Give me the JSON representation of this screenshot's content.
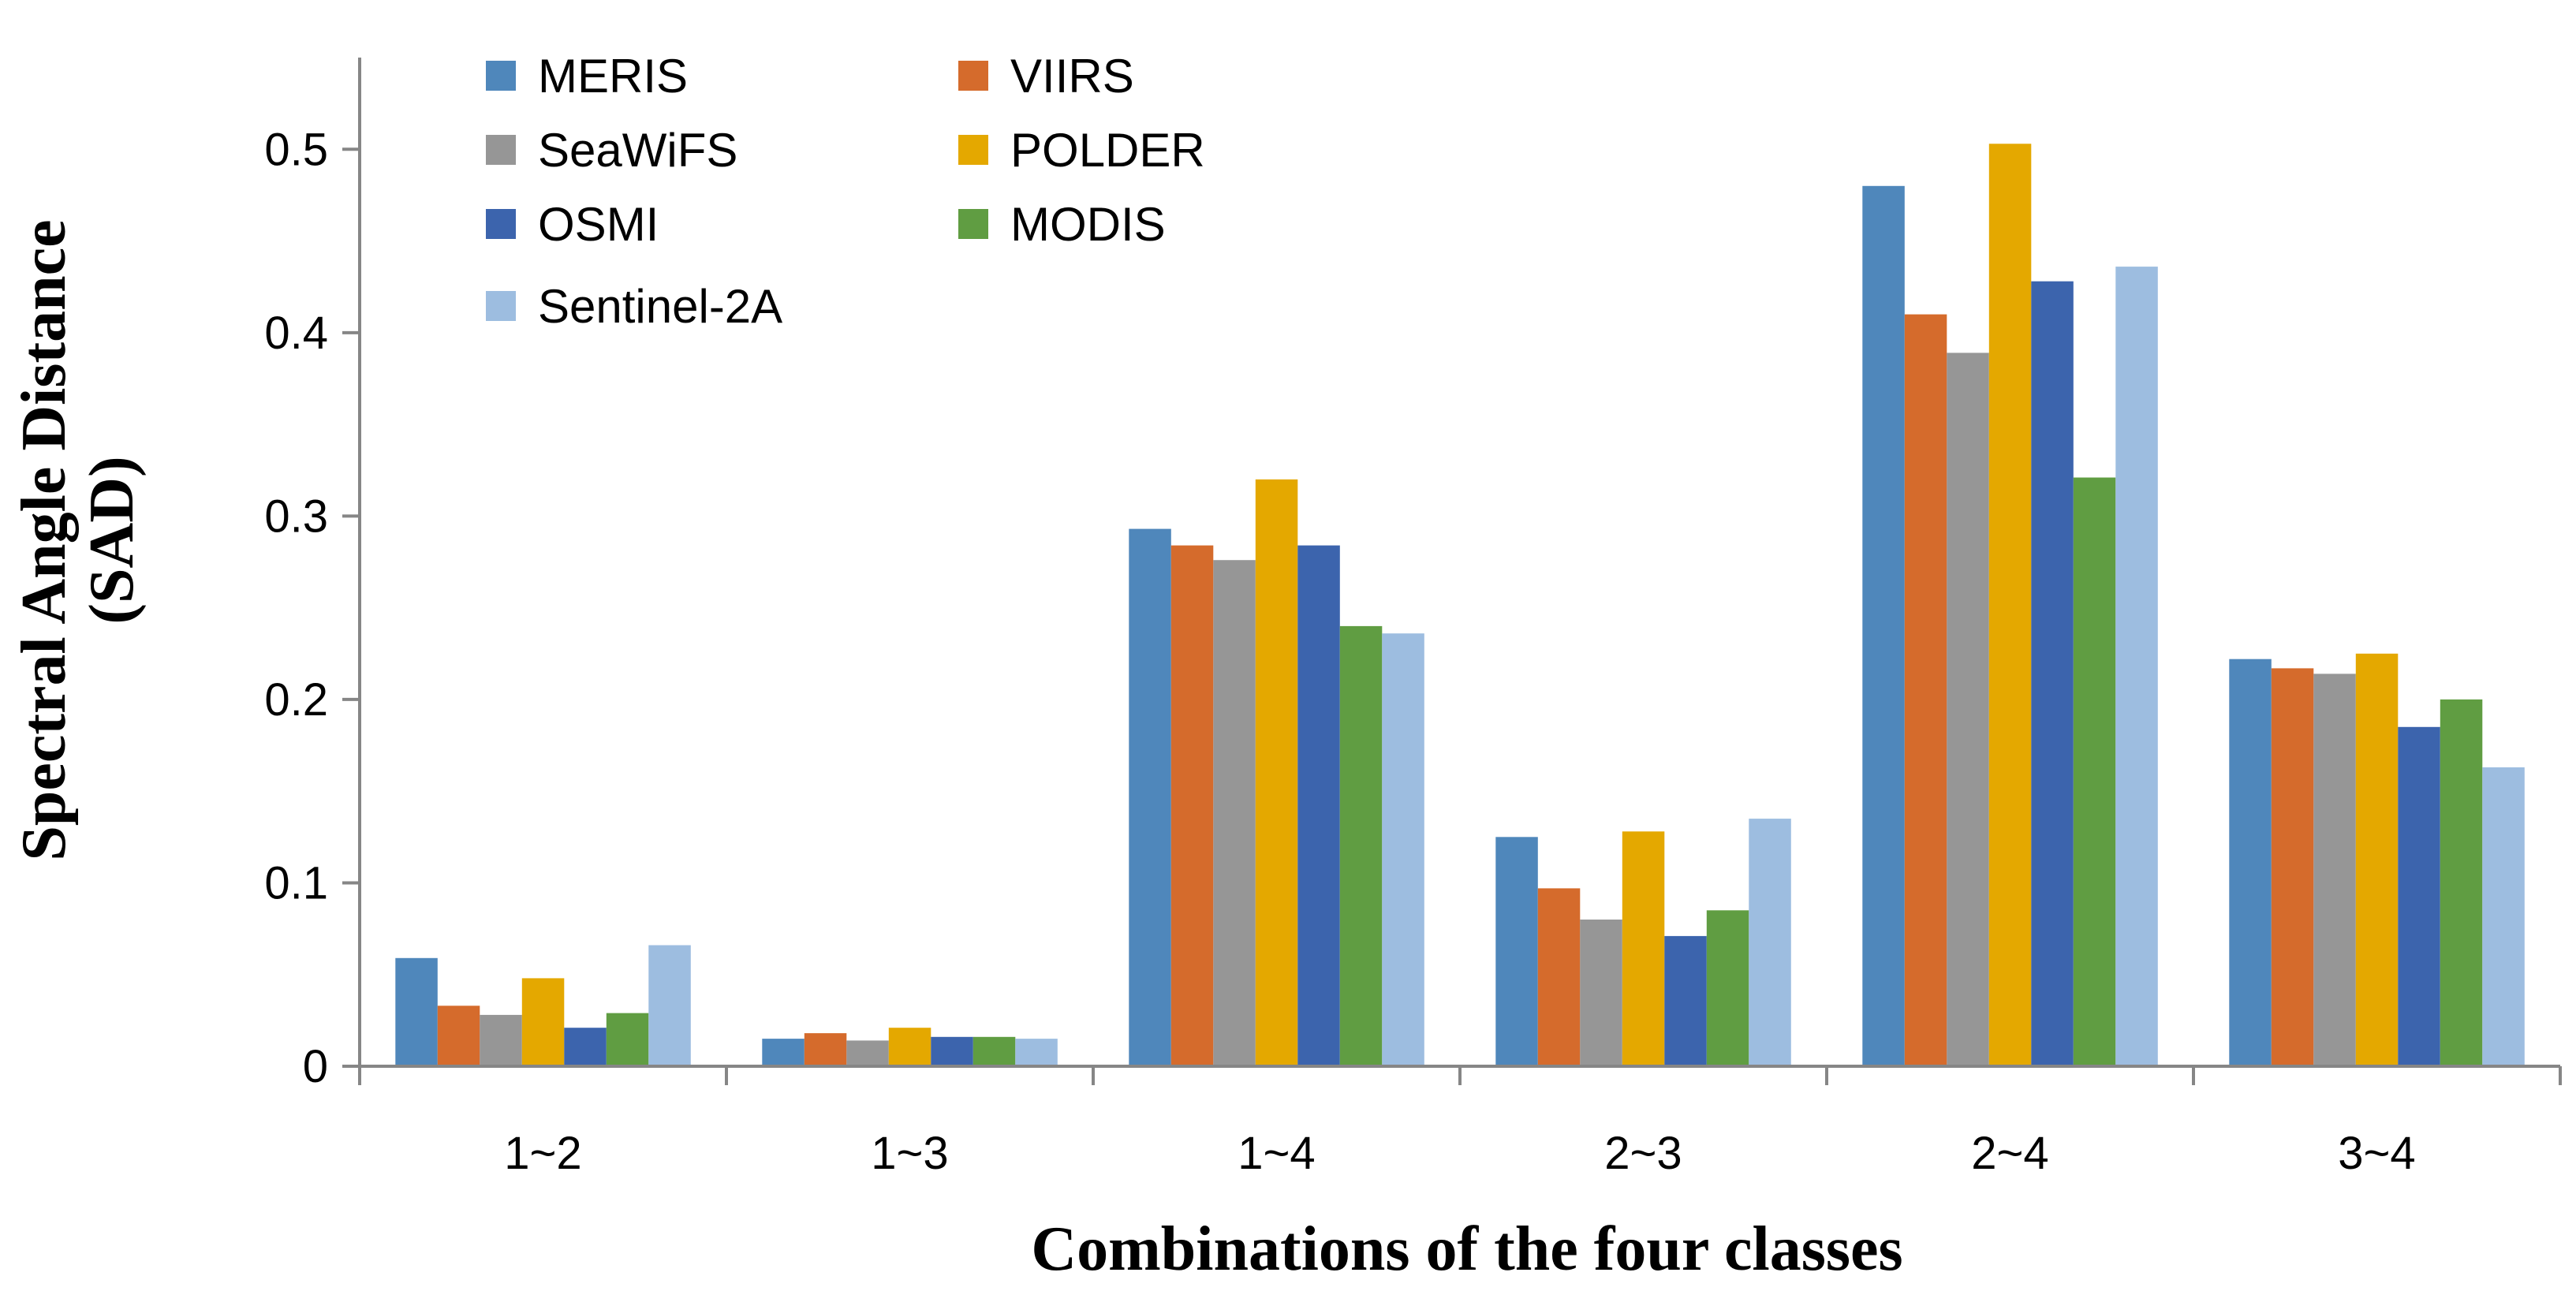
{
  "chart_data": {
    "type": "bar",
    "title": "",
    "xlabel": "Combinations of the four classes",
    "ylabel_line1": "Spectral Angle Distance",
    "ylabel_line2": "(SAD)",
    "categories": [
      "1~2",
      "1~3",
      "1~4",
      "2~3",
      "2~4",
      "3~4"
    ],
    "ylim": [
      0,
      0.5
    ],
    "yticks": [
      {
        "value": 0,
        "label": "0"
      },
      {
        "value": 0.1,
        "label": "0.1"
      },
      {
        "value": 0.2,
        "label": "0.2"
      },
      {
        "value": 0.3,
        "label": "0.3"
      },
      {
        "value": 0.4,
        "label": "0.4"
      },
      {
        "value": 0.5,
        "label": "0.5"
      }
    ],
    "grid": false,
    "legend_position": "top-left",
    "series": [
      {
        "name": "MERIS",
        "color": "#4f87bb",
        "values": [
          0.059,
          0.015,
          0.293,
          0.125,
          0.48,
          0.222
        ]
      },
      {
        "name": "VIIRS",
        "color": "#d56b2c",
        "values": [
          0.033,
          0.018,
          0.284,
          0.097,
          0.41,
          0.217
        ]
      },
      {
        "name": "SeaWiFS",
        "color": "#969696",
        "values": [
          0.028,
          0.014,
          0.276,
          0.08,
          0.389,
          0.214
        ]
      },
      {
        "name": "POLDER",
        "color": "#e4a800",
        "values": [
          0.048,
          0.021,
          0.32,
          0.128,
          0.503,
          0.225
        ]
      },
      {
        "name": "OSMI",
        "color": "#3c64ad",
        "values": [
          0.021,
          0.016,
          0.284,
          0.071,
          0.428,
          0.185
        ]
      },
      {
        "name": "MODIS",
        "color": "#609d42",
        "values": [
          0.029,
          0.016,
          0.24,
          0.085,
          0.321,
          0.2
        ]
      },
      {
        "name": "Sentinel-2A",
        "color": "#9dbde0",
        "values": [
          0.066,
          0.015,
          0.236,
          0.135,
          0.436,
          0.163
        ]
      }
    ]
  }
}
